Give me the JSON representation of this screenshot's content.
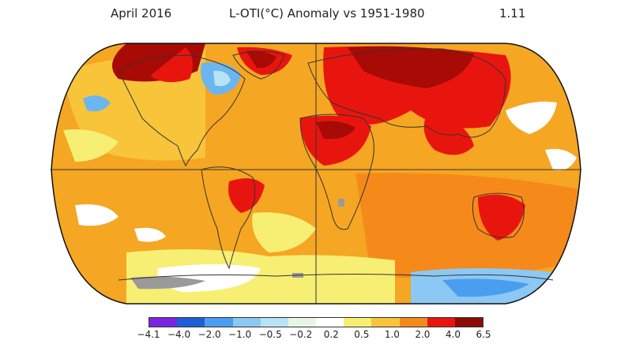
{
  "header": {
    "date": "April 2016",
    "title": "L-OTI(°C) Anomaly vs 1951-1980",
    "global_mean": "1.11"
  },
  "colors": {
    "ocean_warm": "#f5a623",
    "land_hot": "#e8150f",
    "land_very_hot": "#a80a05",
    "cool_blue": "#6cb6ef",
    "pale_yellow": "#f7f086",
    "missing_gray": "#9a9a9a",
    "coastline": "#333333"
  },
  "legend": {
    "tick_labels": [
      "−4.1",
      "−4.0",
      "−2.0",
      "−1.0",
      "−0.5",
      "−0.2",
      "0.2",
      "0.5",
      "1.0",
      "2.0",
      "4.0",
      "6.5"
    ],
    "segment_colors": [
      "#7a24e0",
      "#1f5fd6",
      "#4a9ef0",
      "#8cc8f4",
      "#b8e3f5",
      "#e8f7e3",
      "#ffffff",
      "#f7ef73",
      "#f7c43a",
      "#f48a1b",
      "#e8150f",
      "#8c0b05"
    ]
  }
}
